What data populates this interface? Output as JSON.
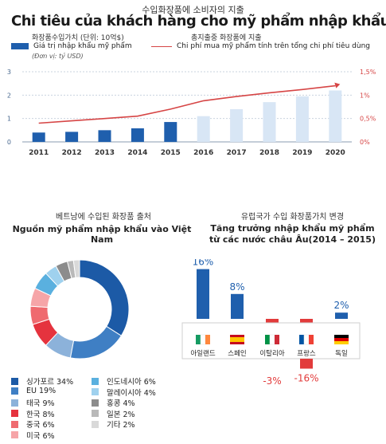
{
  "header": {
    "title_kr": "수입화장품에 소비자의 지출",
    "title_vn": "Chi tiêu của khách hàng cho mỹ phẩm nhập khẩu"
  },
  "top_chart": {
    "legend_bar_kr": "화장품수입가치 (단위: 10억$)",
    "legend_line_kr": "총지출중 화장품에 지출",
    "legend_bar_vn": "Giá trị nhập khẩu mỹ phẩm",
    "legend_line_vn": "Chi phí mua mỹ phẩm tính trên tổng chi phí tiêu dùng",
    "unit": "(Đơn vị: tỷ USD)",
    "bar_color": "#1f5fad",
    "forecast_color": "#d8e6f5",
    "line_color": "#d64545"
  },
  "pie_chart": {
    "title_kr": "베트남에 수입된 화장품 출처",
    "title_vn": "Nguồn mỹ phẩm nhập khẩu vào Việt Nam"
  },
  "growth_chart": {
    "title_kr": "유럽국가 수입 화장품가치 변경",
    "title_vn_line1": "Tăng trưởng nhập khẩu mỹ phẩm",
    "title_vn_line2": "từ các nước châu Âu(2014 – 2015)",
    "pos_color": "#1f5fad",
    "neg_color": "#e23b3b"
  },
  "chart_data": [
    {
      "type": "bar",
      "categories": [
        "2011",
        "2012",
        "2013",
        "2014",
        "2015",
        "2016",
        "2017",
        "2018",
        "2019",
        "2020"
      ],
      "series": [
        {
          "name": "Giá trị nhập khẩu mỹ phẩm",
          "values": [
            0.4,
            0.43,
            0.5,
            0.58,
            0.85,
            1.1,
            1.4,
            1.7,
            1.95,
            2.2
          ]
        },
        {
          "name": "Chi phí mua mỹ phẩm tính trên tổng chi phí tiêu dùng",
          "values": [
            0.4,
            0.45,
            0.5,
            0.55,
            0.7,
            0.88,
            0.97,
            1.05,
            1.12,
            1.2
          ]
        }
      ],
      "ylim": [
        0,
        3
      ],
      "yticks": [
        "0",
        "1",
        "2",
        "3"
      ],
      "y2lim": [
        0,
        1.5
      ],
      "y2ticks": [
        "0%",
        "0,5%",
        "1%",
        "1,5%"
      ],
      "forecast_from": "2016"
    },
    {
      "type": "pie",
      "labels": [
        "싱가포르",
        "EU",
        "태국",
        "한국",
        "중국",
        "미국",
        "인도네시아",
        "말레이시아",
        "홍콩",
        "일본",
        "기타"
      ],
      "values": [
        34,
        19,
        9,
        8,
        6,
        6,
        6,
        4,
        4,
        2,
        2
      ],
      "colors": [
        "#1c5aa6",
        "#3f7fc4",
        "#8cb2da",
        "#e5333e",
        "#ef6a6f",
        "#f6a5a8",
        "#5ab0df",
        "#9fd1ee",
        "#8c8c8c",
        "#b9b9b9",
        "#d9d9d9"
      ],
      "suffix": "%"
    },
    {
      "type": "bar",
      "categories": [
        "아일랜드",
        "스페인",
        "이탈리아",
        "프랑스",
        "독일"
      ],
      "values": [
        16,
        8,
        -3,
        -16,
        2
      ],
      "value_labels": [
        "16%",
        "8%",
        "-3%",
        "-16%",
        "2%"
      ],
      "flags": [
        [
          "#169b62",
          "#ffffff",
          "#ff883e"
        ],
        [
          "#c60b1e",
          "#ffc400",
          "#c60b1e"
        ],
        [
          "#009246",
          "#ffffff",
          "#ce2b37"
        ],
        [
          "#0055a4",
          "#ffffff",
          "#ef4135"
        ],
        [
          "#000000",
          "#dd0000",
          "#ffce00"
        ]
      ],
      "flag_layout": [
        "v",
        "h",
        "v",
        "v",
        "h"
      ]
    }
  ]
}
